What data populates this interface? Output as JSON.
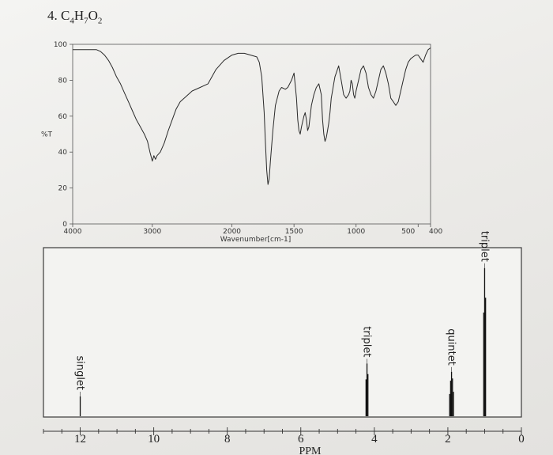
{
  "problem": {
    "number": "4.",
    "formula": "C4H7O2"
  },
  "chart_data": [
    {
      "type": "line",
      "kind": "IR spectrum",
      "xlabel": "Wavenumber[cm-1]",
      "ylabel": "%T",
      "xlim": [
        4000,
        400
      ],
      "ylim": [
        0,
        100
      ],
      "xticks": [
        4000,
        3000,
        2000,
        1500,
        1000,
        500,
        400
      ],
      "xtick_labels": [
        "4000",
        "3000",
        "2000",
        "1500",
        "1000",
        "500",
        "400"
      ],
      "yticks": [
        0,
        20,
        40,
        60,
        80,
        100
      ],
      "series": [
        {
          "x": [
            4000,
            3900,
            3800,
            3700,
            3650,
            3600,
            3550,
            3500,
            3450,
            3400,
            3350,
            3300,
            3250,
            3200,
            3150,
            3100,
            3060,
            3030,
            3000,
            2980,
            2960,
            2940,
            2900,
            2850,
            2800,
            2750,
            2700,
            2650,
            2600,
            2550,
            2500,
            2400,
            2300,
            2200,
            2100,
            2000,
            1950,
            1900,
            1850,
            1800,
            1780,
            1760,
            1740,
            1730,
            1720,
            1710,
            1700,
            1690,
            1670,
            1650,
            1620,
            1600,
            1570,
            1550,
            1520,
            1500,
            1480,
            1470,
            1460,
            1450,
            1440,
            1420,
            1410,
            1400,
            1390,
            1380,
            1360,
            1340,
            1320,
            1300,
            1280,
            1270,
            1260,
            1250,
            1240,
            1230,
            1220,
            1210,
            1200,
            1190,
            1180,
            1170,
            1160,
            1150,
            1140,
            1120,
            1100,
            1080,
            1060,
            1050,
            1040,
            1030,
            1020,
            1010,
            1000,
            980,
            960,
            940,
            920,
            900,
            880,
            860,
            840,
            820,
            800,
            780,
            760,
            740,
            720,
            700,
            680,
            660,
            640,
            620,
            600,
            580,
            560,
            540,
            520,
            500,
            480,
            460,
            440,
            420,
            400
          ],
          "y": [
            97,
            97,
            97,
            97,
            96,
            94,
            91,
            87,
            82,
            78,
            73,
            68,
            63,
            58,
            54,
            50,
            46,
            40,
            35,
            38,
            36,
            38,
            40,
            45,
            52,
            58,
            64,
            68,
            70,
            72,
            74,
            76,
            78,
            86,
            91,
            94,
            95,
            95,
            94,
            93,
            90,
            82,
            62,
            45,
            30,
            22,
            25,
            35,
            52,
            66,
            74,
            76,
            75,
            76,
            80,
            84,
            70,
            58,
            52,
            50,
            54,
            60,
            62,
            58,
            52,
            54,
            66,
            72,
            76,
            78,
            72,
            58,
            50,
            46,
            48,
            52,
            56,
            62,
            70,
            74,
            78,
            82,
            84,
            86,
            88,
            80,
            72,
            70,
            72,
            74,
            80,
            78,
            72,
            70,
            74,
            80,
            86,
            88,
            84,
            76,
            72,
            70,
            74,
            80,
            86,
            88,
            84,
            78,
            70,
            68,
            66,
            68,
            74,
            80,
            86,
            90,
            92,
            93,
            94,
            94,
            92,
            90,
            94,
            97,
            98
          ]
        }
      ]
    },
    {
      "type": "bar",
      "kind": "1H NMR spectrum",
      "xlabel": "PPM",
      "xlim": [
        13,
        0
      ],
      "xticks": [
        12,
        10,
        8,
        6,
        4,
        2,
        0
      ],
      "peaks": [
        {
          "ppm": 12.0,
          "height": 0.12,
          "multiplicity": "singlet",
          "lines": 1
        },
        {
          "ppm": 4.2,
          "height": 0.32,
          "multiplicity": "triplet",
          "lines": 3
        },
        {
          "ppm": 1.9,
          "height": 0.27,
          "multiplicity": "quintet",
          "lines": 5
        },
        {
          "ppm": 1.0,
          "height": 0.9,
          "multiplicity": "triplet",
          "lines": 3
        }
      ]
    }
  ]
}
